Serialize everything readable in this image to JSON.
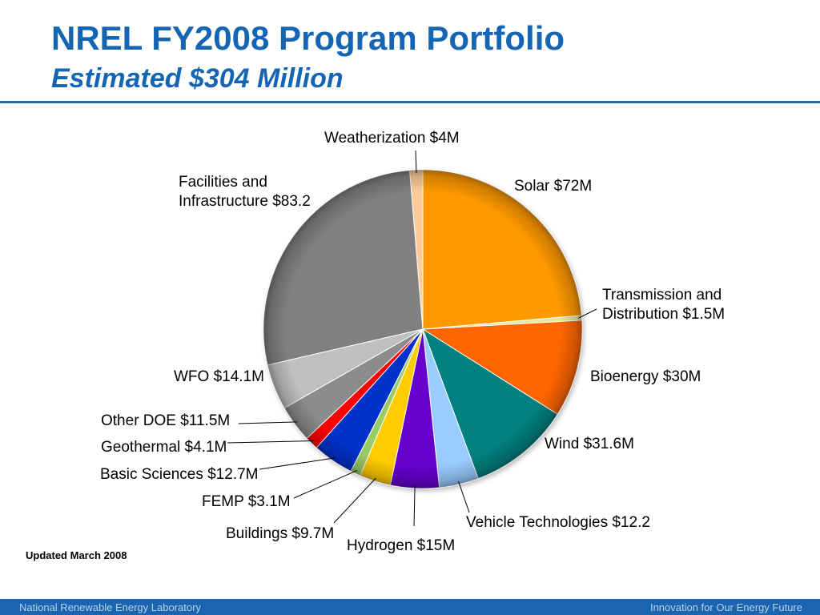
{
  "slide": {
    "title": "NREL FY2008 Program Portfolio",
    "subtitle": "Estimated $304 Million",
    "updated_note": "Updated March 2008",
    "footer_left": "National Renewable Energy Laboratory",
    "footer_right": "Innovation for Our Energy Future"
  },
  "chart_data": {
    "type": "pie",
    "title": "NREL FY2008 Program Portfolio",
    "subtitle": "Estimated $304 Million",
    "start": "12 o'clock",
    "direction": "clockwise",
    "slices": [
      {
        "key": "solar",
        "label": "Solar $72M",
        "value": 72,
        "color": "#ff9900"
      },
      {
        "key": "transmission",
        "label": "Transmission and Distribution $1.5M",
        "value": 1.5,
        "color": "#e8e89a"
      },
      {
        "key": "bioenergy",
        "label": "Bioenergy $30M",
        "value": 30,
        "color": "#ff6600"
      },
      {
        "key": "wind",
        "label": "Wind $31.6M",
        "value": 31.6,
        "color": "#008080"
      },
      {
        "key": "vehicle",
        "label": "Vehicle Technologies $12.2",
        "value": 12.2,
        "color": "#99ccff"
      },
      {
        "key": "hydrogen",
        "label": "Hydrogen $15M",
        "value": 15,
        "color": "#6600cc"
      },
      {
        "key": "buildings",
        "label": "Buildings $9.7M",
        "value": 9.7,
        "color": "#ffcc00"
      },
      {
        "key": "femp",
        "label": "FEMP $3.1M",
        "value": 3.1,
        "color": "#99cc66"
      },
      {
        "key": "basic_sciences",
        "label": "Basic Sciences $12.7M",
        "value": 12.7,
        "color": "#0033cc"
      },
      {
        "key": "geothermal",
        "label": "Geothermal $4.1M",
        "value": 4.1,
        "color": "#ff0000"
      },
      {
        "key": "other_doe",
        "label": "Other DOE $11.5M",
        "value": 11.5,
        "color": "#8c8c8c"
      },
      {
        "key": "wfo",
        "label": "WFO $14.1M",
        "value": 14.1,
        "color": "#c0c0c0"
      },
      {
        "key": "facilities",
        "label": "Facilities and Infrastructure $83.2",
        "value": 83.2,
        "color": "#808080"
      },
      {
        "key": "weatherization",
        "label": "Weatherization $4M",
        "value": 4,
        "color": "#ffcc99"
      }
    ]
  }
}
